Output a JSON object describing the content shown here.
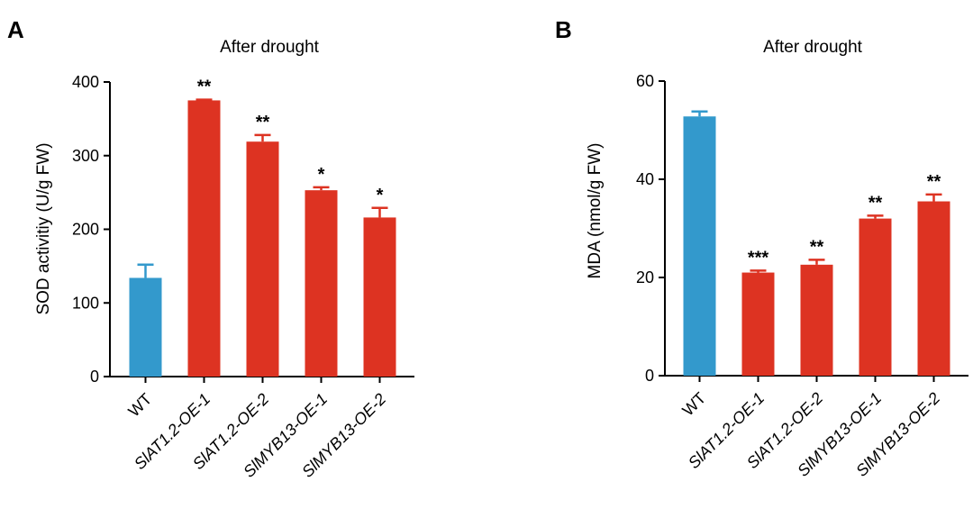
{
  "chart_data": [
    {
      "panel": "A",
      "type": "bar",
      "title": "After drought",
      "xlabel": "",
      "ylabel": "SOD activitiy (U/g FW)",
      "ylim": [
        0,
        400
      ],
      "yticks": [
        0,
        100,
        200,
        300,
        400
      ],
      "categories": [
        "WT",
        "SlAT1.2-OE-1",
        "SlAT1.2-OE-2",
        "SlMYB13-OE-1",
        "SlMYB13-OE-2"
      ],
      "values": [
        134,
        375,
        319,
        253,
        216
      ],
      "errors": [
        18,
        1,
        9,
        4,
        13
      ],
      "significance": [
        "",
        "**",
        "**",
        "*",
        "*"
      ],
      "colors": [
        "#3399CC",
        "#DD3322",
        "#DD3322",
        "#DD3322",
        "#DD3322"
      ]
    },
    {
      "panel": "B",
      "type": "bar",
      "title": "After drought",
      "xlabel": "",
      "ylabel": "MDA (nmol/g FW)",
      "ylim": [
        0,
        60
      ],
      "yticks": [
        0,
        20,
        40,
        60
      ],
      "categories": [
        "WT",
        "SlAT1.2-OE-1",
        "SlAT1.2-OE-2",
        "SlMYB13-OE-1",
        "SlMYB13-OE-2"
      ],
      "values": [
        52.8,
        21.0,
        22.6,
        32.0,
        35.5
      ],
      "errors": [
        1.0,
        0.4,
        1.0,
        0.6,
        1.4
      ],
      "significance": [
        "",
        "***",
        "**",
        "**",
        "**"
      ],
      "colors": [
        "#3399CC",
        "#DD3322",
        "#DD3322",
        "#DD3322",
        "#DD3322"
      ]
    }
  ]
}
